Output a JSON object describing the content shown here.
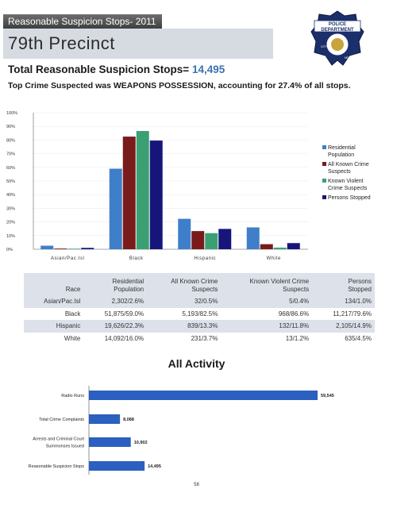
{
  "header": {
    "bar_label": "Reasonable Suspicion Stops- 2011",
    "precinct_title": "79th Precinct",
    "total_label": "Total Reasonable Suspicion Stops=",
    "total_value": "14,495",
    "top_crime_line": "Top Crime Suspected was WEAPONS POSSESSION, accounting for  27.4%  of all stops."
  },
  "badge": {
    "line1": "POLICE",
    "line2": "DEPARTMENT",
    "arc_left": "CITY OF",
    "arc_right": "NEW YORK"
  },
  "colors": {
    "residential": "#3f7fc9",
    "known_crime": "#7a1b1b",
    "known_violent": "#3aa074",
    "persons_stopped": "#16167a",
    "activity_bar": "#2b5fc0",
    "table_band": "#dce1ea"
  },
  "chart_data": [
    {
      "type": "bar",
      "categories": [
        "Asian/Pac.Isl",
        "Black",
        "Hispanic",
        "White"
      ],
      "ylim": [
        0,
        100
      ],
      "yticks": [
        "0%",
        "10%",
        "20%",
        "30%",
        "40%",
        "50%",
        "60%",
        "70%",
        "80%",
        "90%",
        "100%"
      ],
      "grid": true,
      "legend_position": "right",
      "series": [
        {
          "name": "Residential Population",
          "values": [
            2.6,
            59.0,
            22.3,
            16.0
          ]
        },
        {
          "name": "All Known Crime Suspects",
          "values": [
            0.5,
            82.5,
            13.3,
            3.7
          ]
        },
        {
          "name": "Known Violent Crime Suspects",
          "values": [
            0.4,
            86.6,
            11.8,
            1.2
          ]
        },
        {
          "name": "Persons Stopped",
          "values": [
            1.0,
            79.6,
            14.9,
            4.5
          ]
        }
      ]
    },
    {
      "type": "bar",
      "orientation": "horizontal",
      "title": "All Activity",
      "categories": [
        "Radio Runs",
        "Total Crime Complaints",
        "Arrests and Criminal Court Summonses Issued",
        "Reasonable Suspicion Stops"
      ],
      "category_lines": [
        [
          "Radio Runs"
        ],
        [
          "Total Crime Complaints"
        ],
        [
          "Arrests and Criminal Court",
          "Summonses Issued"
        ],
        [
          "Reasonable Suspicion Stops"
        ]
      ],
      "values": [
        59545,
        8088,
        10902,
        14495
      ],
      "value_labels": [
        "59,545",
        "8,088",
        "10,902",
        "14,495"
      ],
      "xlim": [
        0,
        59545
      ]
    }
  ],
  "table": {
    "headers": [
      [
        "Race",
        ""
      ],
      [
        "Residential",
        "Population"
      ],
      [
        "All Known Crime",
        "Suspects"
      ],
      [
        "Known Violent Crime",
        "Suspects"
      ],
      [
        "Persons",
        "Stopped"
      ]
    ],
    "rows": [
      [
        "Asian/Pac.Isl",
        "2,302/2.6%",
        "32/0.5%",
        "5/0.4%",
        "134/1.0%"
      ],
      [
        "Black",
        "51,875/59.0%",
        "5,193/82.5%",
        "968/86.6%",
        "11,217/79.6%"
      ],
      [
        "Hispanic",
        "19,626/22.3%",
        "839/13.3%",
        "132/11.8%",
        "2,105/14.9%"
      ],
      [
        "White",
        "14,092/16.0%",
        "231/3.7%",
        "13/1.2%",
        "635/4.5%"
      ]
    ]
  },
  "page_number": "58"
}
